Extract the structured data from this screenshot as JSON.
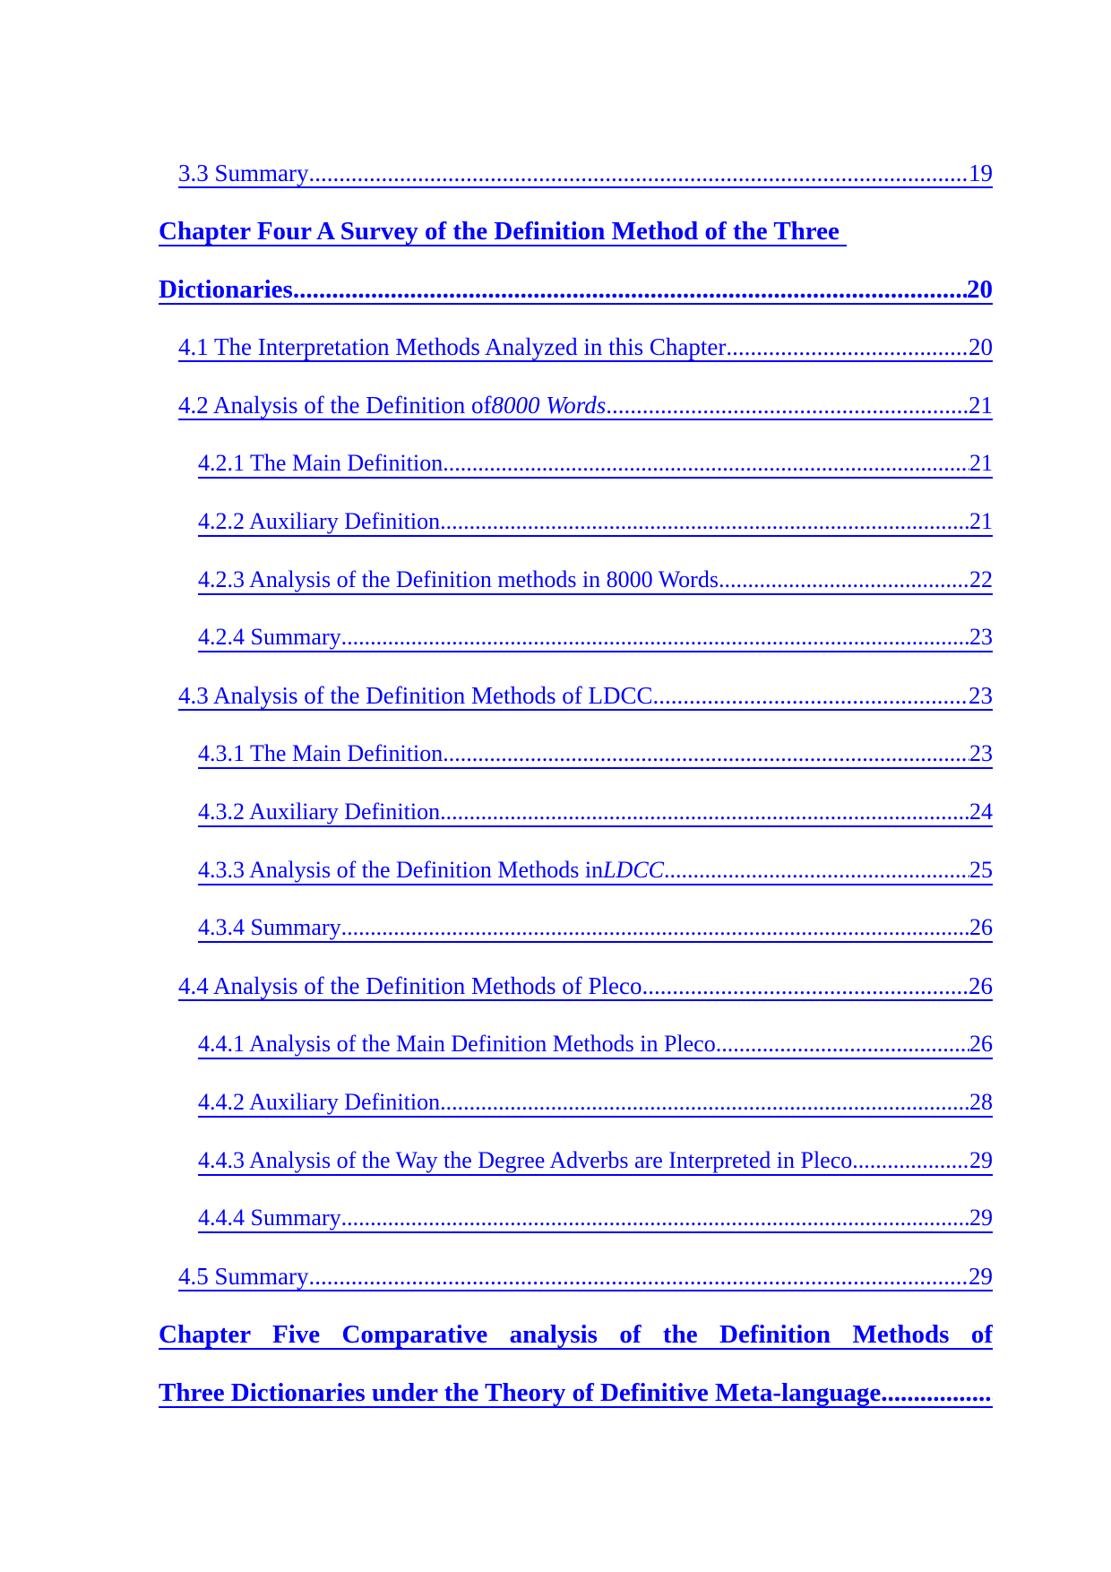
{
  "link_color": "#0000ff",
  "entries": [
    {
      "level": 2,
      "title": "3.3 Summary",
      "page": "19"
    },
    {
      "level": 1,
      "title": "Chapter Four A Survey of the Definition Method of the Three",
      "page": ""
    },
    {
      "level": 1,
      "title": "Dictionaries",
      "page": "20"
    },
    {
      "level": 2,
      "title": "4.1 The Interpretation Methods Analyzed in this Chapter",
      "page": "20"
    },
    {
      "level": 2,
      "title": "4.2 Analysis of the Definition of ",
      "italic": "8000 Words",
      "page": "21"
    },
    {
      "level": 3,
      "title": "4.2.1 The Main Definition",
      "page": "21"
    },
    {
      "level": 3,
      "title": "4.2.2 Auxiliary Definition",
      "page": "21"
    },
    {
      "level": 3,
      "title": "4.2.3 Analysis of the Definition methods in 8000 Words",
      "page": "22"
    },
    {
      "level": 3,
      "title": "4.2.4 Summary",
      "page": "23"
    },
    {
      "level": 2,
      "title": "4.3 Analysis of the Definition Methods of LDCC",
      "page": "23"
    },
    {
      "level": 3,
      "title": "4.3.1 The Main Definition",
      "page": "23"
    },
    {
      "level": 3,
      "title": "4.3.2 Auxiliary Definition",
      "page": "24"
    },
    {
      "level": 3,
      "title": "4.3.3 Analysis of the Definition Methods in ",
      "italic": "LDCC",
      "page": "25"
    },
    {
      "level": 3,
      "title": "4.3.4 Summary",
      "page": "26"
    },
    {
      "level": 2,
      "title": "4.4 Analysis of the Definition Methods of Pleco",
      "page": "26"
    },
    {
      "level": 3,
      "title": "4.4.1 Analysis of the Main Definition Methods in Pleco",
      "page": "26"
    },
    {
      "level": 3,
      "title": "4.4.2 Auxiliary Definition",
      "page": "28"
    },
    {
      "level": 3,
      "title": "4.4.3 Analysis of the Way the Degree Adverbs are Interpreted in Pleco",
      "page": "29"
    },
    {
      "level": 3,
      "title": "4.4.4 Summary",
      "page": "29"
    },
    {
      "level": 2,
      "title": "4.5 Summary",
      "page": "29"
    },
    {
      "level": 1,
      "title": "Chapter Five Comparative analysis of the Definition Methods of",
      "page": "",
      "justify": true
    },
    {
      "level": 1,
      "title": "Three Dictionaries under the Theory of Definitive Meta-language",
      "page": ""
    }
  ]
}
